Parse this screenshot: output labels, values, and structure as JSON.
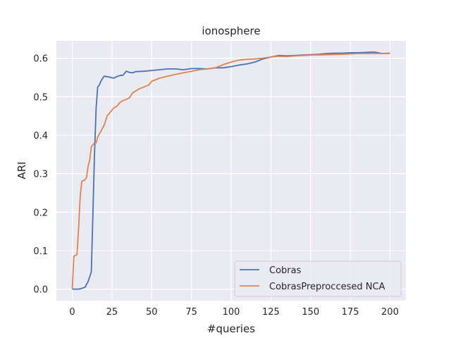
{
  "chart_data": {
    "type": "line",
    "title": "ionosphere",
    "xlabel": "#queries",
    "ylabel": "ARI",
    "xlim": [
      -10,
      210
    ],
    "ylim": [
      -0.03,
      0.645
    ],
    "xticks": [
      0,
      25,
      50,
      75,
      100,
      125,
      150,
      175,
      200
    ],
    "yticks": [
      0.0,
      0.1,
      0.2,
      0.3,
      0.4,
      0.5,
      0.6
    ],
    "xtick_labels": [
      "0",
      "25",
      "50",
      "75",
      "100",
      "125",
      "150",
      "175",
      "200"
    ],
    "ytick_labels": [
      "0.0",
      "0.1",
      "0.2",
      "0.3",
      "0.4",
      "0.5",
      "0.6"
    ],
    "grid": true,
    "legend_position": "lower-right",
    "background": "#eaeaf2",
    "series": [
      {
        "name": "Cobras",
        "color": "#4c72b0",
        "x": [
          0,
          2,
          4,
          6,
          8,
          10,
          12,
          13,
          14,
          15,
          16,
          17,
          18,
          20,
          22,
          24,
          26,
          28,
          30,
          32,
          34,
          36,
          38,
          40,
          45,
          50,
          55,
          60,
          65,
          70,
          75,
          80,
          85,
          90,
          95,
          100,
          105,
          110,
          115,
          120,
          125,
          130,
          135,
          140,
          145,
          150,
          155,
          160,
          165,
          170,
          175,
          180,
          185,
          190,
          195,
          200
        ],
        "y": [
          0.0,
          0.0,
          0.0,
          0.002,
          0.005,
          0.02,
          0.045,
          0.2,
          0.35,
          0.47,
          0.525,
          0.53,
          0.54,
          0.553,
          0.552,
          0.55,
          0.548,
          0.552,
          0.555,
          0.556,
          0.566,
          0.563,
          0.562,
          0.565,
          0.566,
          0.568,
          0.57,
          0.572,
          0.572,
          0.57,
          0.573,
          0.573,
          0.572,
          0.575,
          0.575,
          0.578,
          0.582,
          0.585,
          0.59,
          0.598,
          0.603,
          0.607,
          0.606,
          0.607,
          0.608,
          0.609,
          0.61,
          0.612,
          0.613,
          0.613,
          0.614,
          0.614,
          0.615,
          0.616,
          0.612,
          0.613
        ]
      },
      {
        "name": "CobrasPreproccesed NCA",
        "color": "#dd8452",
        "x": [
          0,
          1,
          3,
          4,
          5,
          6,
          7,
          8,
          9,
          10,
          11,
          12,
          13,
          14,
          15,
          16,
          18,
          20,
          22,
          24,
          26,
          28,
          30,
          32,
          34,
          36,
          38,
          40,
          42,
          45,
          48,
          50,
          55,
          60,
          65,
          70,
          75,
          80,
          85,
          90,
          95,
          100,
          105,
          110,
          115,
          120,
          125,
          130,
          135,
          140,
          145,
          150,
          160,
          170,
          180,
          190,
          200
        ],
        "y": [
          0.0,
          0.085,
          0.09,
          0.16,
          0.24,
          0.28,
          0.282,
          0.284,
          0.29,
          0.32,
          0.335,
          0.37,
          0.375,
          0.38,
          0.38,
          0.395,
          0.41,
          0.425,
          0.45,
          0.46,
          0.47,
          0.475,
          0.485,
          0.49,
          0.493,
          0.497,
          0.51,
          0.515,
          0.52,
          0.525,
          0.53,
          0.54,
          0.548,
          0.553,
          0.558,
          0.562,
          0.566,
          0.57,
          0.572,
          0.575,
          0.583,
          0.59,
          0.595,
          0.597,
          0.598,
          0.6,
          0.603,
          0.605,
          0.604,
          0.606,
          0.607,
          0.608,
          0.609,
          0.61,
          0.612,
          0.612,
          0.612
        ]
      }
    ]
  }
}
